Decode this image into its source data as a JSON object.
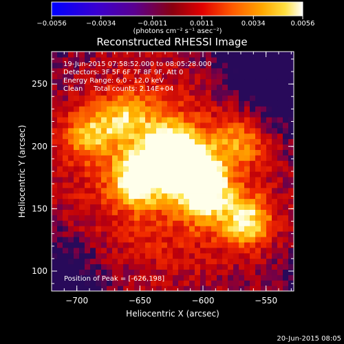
{
  "colorbar": {
    "min": -0.0056,
    "max": 0.0056,
    "tick_values": [
      -0.0056,
      -0.0034,
      -0.0011,
      0.0011,
      0.0034,
      0.0056
    ],
    "tick_labels": [
      "−0.0056",
      "−0.0034",
      "−0.0011",
      "0.0011",
      "0.0034",
      "0.0056"
    ],
    "unit_label": "(photons cm⁻² s⁻¹ asec⁻²)"
  },
  "chart_data": {
    "type": "heatmap",
    "title": "Reconstructed RHESSI Image",
    "xlabel": "Heliocentric X (arcsec)",
    "ylabel": "Heliocentric Y (arcsec)",
    "xlim": [
      -720,
      -528
    ],
    "ylim": [
      84,
      276
    ],
    "x_ticks": [
      -700,
      -650,
      -600,
      -550
    ],
    "x_tick_labels": [
      "−700",
      "−650",
      "−600",
      "−550"
    ],
    "y_ticks": [
      100,
      150,
      200,
      250
    ],
    "y_tick_labels": [
      "100",
      "150",
      "200",
      "250"
    ],
    "colormap": "hot (blue → purple → red → orange → yellow → white)",
    "peak_position": [
      -626,
      198
    ],
    "sources": [
      {
        "x": -626,
        "y": 198,
        "intensity": 1.0
      },
      {
        "x": -650,
        "y": 175,
        "intensity": 0.9
      },
      {
        "x": -605,
        "y": 180,
        "intensity": 0.85
      },
      {
        "x": -598,
        "y": 160,
        "intensity": 0.7
      },
      {
        "x": -565,
        "y": 140,
        "intensity": 0.75
      },
      {
        "x": -690,
        "y": 210,
        "intensity": 0.55
      },
      {
        "x": -660,
        "y": 225,
        "intensity": 0.5
      },
      {
        "x": -570,
        "y": 205,
        "intensity": 0.45
      }
    ],
    "annotations": [
      "19-Jun-2015 07:58:52.000 to 08:05:28.000",
      "Detectors: 3F 5F 6F 7F 8F 9F, Att 0",
      "Energy Range: 6.0 - 12.0 keV",
      "Clean     Total counts: 2.14E+04"
    ],
    "peak_label": "Position of Peak = [-626,198]",
    "colors": {
      "background": "#000000",
      "text": "#ffffff"
    }
  },
  "footer": {
    "timestamp": "20-Jun-2015 08:05"
  }
}
